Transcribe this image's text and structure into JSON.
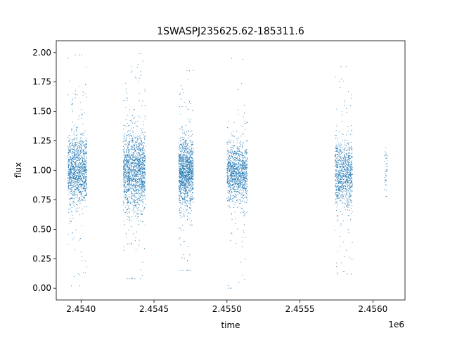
{
  "chart_data": {
    "type": "scatter",
    "title": "1SWASPJ235625.62-185311.6",
    "xlabel": "time",
    "ylabel": "flux",
    "x_offset_label": "1e6",
    "xlim": [
      2.45383,
      2.45622
    ],
    "ylim": [
      -0.1,
      2.1
    ],
    "x_ticks": [
      2.454,
      2.4545,
      2.455,
      2.4555,
      2.456
    ],
    "x_tick_labels": [
      "2.4540",
      "2.4545",
      "2.4550",
      "2.4555",
      "2.4560"
    ],
    "y_ticks": [
      0,
      0.25,
      0.5,
      0.75,
      1,
      1.25,
      1.5,
      1.75,
      2
    ],
    "y_tick_labels": [
      "0.00",
      "0.25",
      "0.50",
      "0.75",
      "1.00",
      "1.25",
      "1.50",
      "1.75",
      "2.00"
    ],
    "grid": false,
    "legend": "none",
    "marker_color": "#1f77b4",
    "series": [
      {
        "x_range": [
          2.45391,
          2.45404
        ],
        "median": 1.0,
        "core_spread": 0.15,
        "min": 0.02,
        "max": 1.98,
        "n_points": 1200
      },
      {
        "x_range": [
          2.45429,
          2.45444
        ],
        "median": 1.0,
        "core_spread": 0.16,
        "min": 0.08,
        "max": 1.99,
        "n_points": 1500
      },
      {
        "x_range": [
          2.45467,
          2.45477
        ],
        "median": 0.98,
        "core_spread": 0.13,
        "min": 0.15,
        "max": 1.95,
        "n_points": 1300
      },
      {
        "x_range": [
          2.455,
          2.45514
        ],
        "median": 0.98,
        "core_spread": 0.12,
        "min": 0.0,
        "max": 1.95,
        "n_points": 1100
      },
      {
        "x_range": [
          2.45574,
          2.45586
        ],
        "median": 0.97,
        "core_spread": 0.14,
        "min": 0.12,
        "max": 1.88,
        "n_points": 900
      },
      {
        "x_range": [
          2.45608,
          2.4561
        ],
        "median": 1.02,
        "core_spread": 0.1,
        "min": 0.78,
        "max": 1.28,
        "n_points": 40
      }
    ]
  }
}
